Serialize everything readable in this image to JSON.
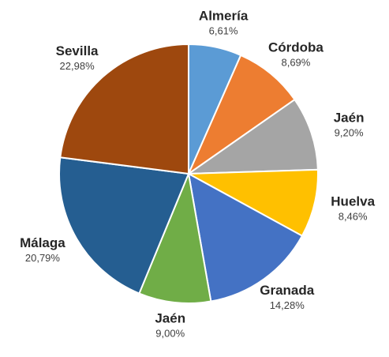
{
  "chart_data": {
    "type": "pie",
    "categories": [
      "Almería",
      "Córdoba",
      "Jaén",
      "Huelva",
      "Granada",
      "Jaén",
      "Málaga",
      "Sevilla"
    ],
    "values": [
      6.61,
      8.69,
      9.2,
      8.46,
      14.28,
      9.0,
      20.79,
      22.98
    ],
    "value_labels": [
      "6,61%",
      "8,69%",
      "9,20%",
      "8,46%",
      "14,28%",
      "9,00%",
      "20,79%",
      "22,98%"
    ],
    "colors": [
      "#5b9bd5",
      "#ed7d31",
      "#a5a5a5",
      "#ffc000",
      "#4472c4",
      "#70ad47",
      "#255e91",
      "#9e480e"
    ]
  }
}
